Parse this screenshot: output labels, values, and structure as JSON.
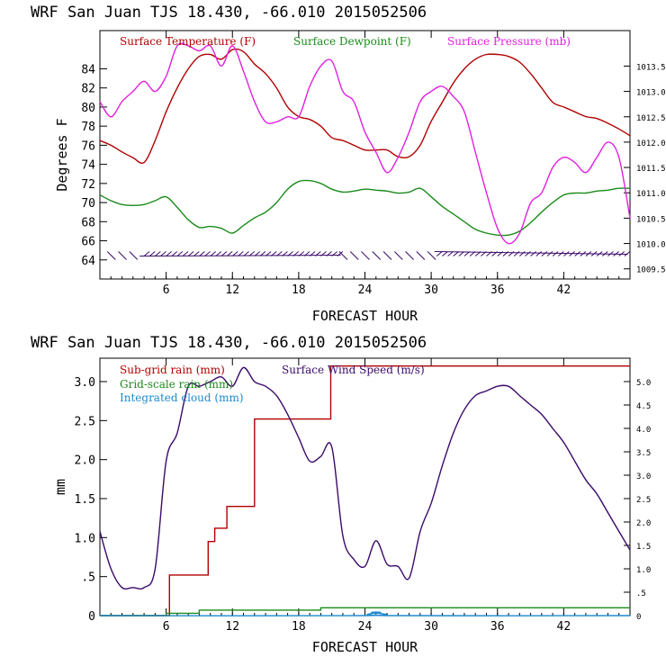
{
  "chart_data": [
    {
      "type": "line",
      "title": "WRF  San Juan TJS  18.430, -66.010  2015052506",
      "xlabel": "FORECAST HOUR",
      "ylabel": "Degrees F",
      "xlim": [
        0,
        48
      ],
      "xticks": [
        "6",
        "12",
        "18",
        "24",
        "30",
        "36",
        "42"
      ],
      "ylim": [
        62,
        88
      ],
      "yticks": [
        "64",
        "66",
        "68",
        "70",
        "72",
        "74",
        "76",
        "78",
        "80",
        "82",
        "84"
      ],
      "y2lim": [
        1009.3,
        1014.2
      ],
      "y2ticks": [
        "1009.5",
        "1010.0",
        "1010.5",
        "1011.0",
        "1011.5",
        "1012.0",
        "1012.5",
        "1013.0",
        "1013.5"
      ],
      "series": [
        {
          "name": "Surface Temperature (F)",
          "color": "#b00000",
          "axis": "left",
          "x": [
            0,
            1,
            2,
            3,
            4,
            5,
            6,
            7,
            8,
            9,
            10,
            11,
            12,
            13,
            14,
            15,
            16,
            17,
            18,
            19,
            20,
            21,
            22,
            23,
            24,
            25,
            26,
            27,
            28,
            29,
            30,
            31,
            32,
            33,
            34,
            35,
            36,
            37,
            38,
            39,
            40,
            41,
            42,
            43,
            44,
            45,
            46,
            47,
            48
          ],
          "values": [
            76.5,
            76,
            75.3,
            74.7,
            74.2,
            76.5,
            79.5,
            82,
            84,
            85.3,
            85.5,
            85,
            86,
            85.8,
            84.5,
            83.5,
            82,
            80,
            79,
            78.7,
            78,
            76.8,
            76.5,
            76,
            75.5,
            75.5,
            75.5,
            74.8,
            74.8,
            76,
            78.5,
            80.5,
            82.5,
            84,
            85,
            85.5,
            85.5,
            85.3,
            84.7,
            83.5,
            82,
            80.5,
            80,
            79.5,
            79,
            78.8,
            78.3,
            77.7,
            77
          ]
        },
        {
          "name": "Surface Dewpoint (F)",
          "color": "#1a8a1a",
          "axis": "left",
          "x": [
            0,
            1,
            2,
            3,
            4,
            5,
            6,
            7,
            8,
            9,
            10,
            11,
            12,
            13,
            14,
            15,
            16,
            17,
            18,
            19,
            20,
            21,
            22,
            23,
            24,
            25,
            26,
            27,
            28,
            29,
            30,
            31,
            32,
            33,
            34,
            35,
            36,
            37,
            38,
            39,
            40,
            41,
            42,
            43,
            44,
            45,
            46,
            47,
            48
          ],
          "values": [
            70.8,
            70.2,
            69.8,
            69.7,
            69.8,
            70.2,
            70.6,
            69.5,
            68.2,
            67.4,
            67.5,
            67.3,
            66.8,
            67.6,
            68.4,
            69,
            70,
            71.4,
            72.2,
            72.3,
            72,
            71.4,
            71.1,
            71.2,
            71.4,
            71.3,
            71.2,
            71,
            71.1,
            71.5,
            70.6,
            69.6,
            68.8,
            68,
            67.2,
            66.8,
            66.6,
            66.6,
            67,
            67.9,
            69,
            70,
            70.8,
            71,
            71,
            71.2,
            71.3,
            71.5,
            71.5
          ]
        },
        {
          "name": "Surface Pressure (mb)",
          "color": "#e020e0",
          "axis": "right",
          "x": [
            0,
            1,
            2,
            3,
            4,
            5,
            6,
            7,
            8,
            9,
            10,
            11,
            12,
            13,
            14,
            15,
            16,
            17,
            18,
            19,
            20,
            21,
            22,
            23,
            24,
            25,
            26,
            27,
            28,
            29,
            30,
            31,
            32,
            33,
            34,
            35,
            36,
            37,
            38,
            39,
            40,
            41,
            42,
            43,
            44,
            45,
            46,
            47,
            48
          ],
          "values": [
            1012.8,
            1012.5,
            1012.8,
            1013.0,
            1013.2,
            1013.0,
            1013.3,
            1013.9,
            1013.9,
            1013.8,
            1013.9,
            1013.5,
            1013.9,
            1013.4,
            1012.8,
            1012.4,
            1012.4,
            1012.5,
            1012.5,
            1013.1,
            1013.5,
            1013.6,
            1013.0,
            1012.8,
            1012.2,
            1011.8,
            1011.4,
            1011.7,
            1012.2,
            1012.8,
            1013.0,
            1013.1,
            1012.9,
            1012.6,
            1011.8,
            1011.0,
            1010.3,
            1010.0,
            1010.2,
            1010.8,
            1011.0,
            1011.5,
            1011.7,
            1011.6,
            1011.4,
            1011.7,
            1012.0,
            1011.7,
            1010.5
          ]
        }
      ]
    },
    {
      "type": "line",
      "title": "WRF  San Juan TJS  18.430, -66.010  2015052506",
      "xlabel": "FORECAST HOUR",
      "ylabel": "mm",
      "xlim": [
        0,
        48
      ],
      "xticks": [
        "6",
        "12",
        "18",
        "24",
        "30",
        "36",
        "42"
      ],
      "ylim": [
        0,
        3.3
      ],
      "yticks": [
        "0",
        ".5",
        "1.0",
        "1.5",
        "2.0",
        "2.5",
        "3.0"
      ],
      "y2lim": [
        0,
        5.5
      ],
      "y2ticks": [
        "0",
        ".5",
        "1.0",
        "1.5",
        "2.0",
        "2.5",
        "3.0",
        "3.5",
        "4.0",
        "4.5",
        "5.0"
      ],
      "series": [
        {
          "name": "Sub-grid rain (mm)",
          "color": "#b00000",
          "axis": "left",
          "step": true,
          "x": [
            0,
            6,
            6.3,
            9.2,
            9.8,
            10.4,
            11.5,
            13.4,
            14,
            20,
            20.9,
            48
          ],
          "values": [
            0,
            0,
            0.52,
            0.52,
            0.95,
            1.12,
            1.4,
            1.4,
            2.52,
            2.52,
            3.2,
            3.2
          ]
        },
        {
          "name": "Grid-scale rain (mm)",
          "color": "#1a8a1a",
          "axis": "left",
          "step": true,
          "x": [
            0,
            6,
            9,
            18,
            20,
            48
          ],
          "values": [
            0,
            0.03,
            0.07,
            0.07,
            0.1,
            0.1
          ]
        },
        {
          "name": "Integrated cloud (mm)",
          "color": "#1a8ad0",
          "axis": "left",
          "x": [
            0,
            24,
            24.6,
            25.4,
            26,
            48
          ],
          "values": [
            0,
            0,
            0.04,
            0.04,
            0,
            0
          ]
        },
        {
          "name": "Surface Wind Speed (m/s)",
          "color": "#3a0a6a",
          "axis": "right",
          "x": [
            0,
            1,
            2,
            3,
            4,
            5,
            6,
            7,
            8,
            9,
            10,
            11,
            12,
            13,
            14,
            15,
            16,
            17,
            18,
            19,
            20,
            21,
            22,
            23,
            24,
            25,
            26,
            27,
            28,
            29,
            30,
            31,
            32,
            33,
            34,
            35,
            36,
            37,
            38,
            39,
            40,
            41,
            42,
            43,
            44,
            45,
            46,
            47,
            48
          ],
          "values": [
            1.8,
            1.0,
            0.6,
            0.6,
            0.6,
            1.0,
            3.3,
            3.9,
            4.9,
            4.9,
            5.0,
            5.1,
            4.9,
            5.3,
            5.0,
            4.9,
            4.7,
            4.3,
            3.8,
            3.3,
            3.4,
            3.6,
            1.7,
            1.2,
            1.05,
            1.6,
            1.1,
            1.05,
            0.8,
            1.8,
            2.4,
            3.2,
            3.9,
            4.4,
            4.7,
            4.8,
            4.9,
            4.9,
            4.7,
            4.5,
            4.3,
            4.0,
            3.7,
            3.3,
            2.9,
            2.6,
            2.2,
            1.8,
            1.4
          ]
        }
      ]
    }
  ]
}
